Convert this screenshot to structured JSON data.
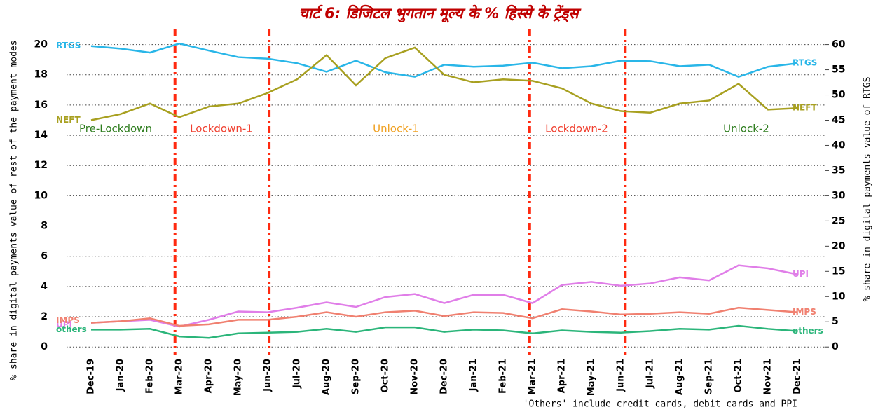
{
  "chart_data": {
    "type": "line",
    "title": "चार्ट 6: डिजिटल भुगतान मूल्य के % हिस्से के ट्रेंड्स",
    "y_label": "% share in digital payments value of rest of the payment modes",
    "y2_label": "% share in digital payments value of RTGS",
    "footnote": "'Others' include credit cards, debit cards and PPI",
    "categories": [
      "Dec-19",
      "Jan-20",
      "Feb-20",
      "Mar-20",
      "Apr-20",
      "May-20",
      "Jun-20",
      "Jul-20",
      "Aug-20",
      "Sep-20",
      "Oct-20",
      "Nov-20",
      "Dec-20",
      "Jan-21",
      "Feb-21",
      "Mar-21",
      "Apr-21",
      "May-21",
      "Jun-21",
      "Jul-21",
      "Aug-21",
      "Sep-21",
      "Oct-21",
      "Nov-21",
      "Dec-21"
    ],
    "annotations": [
      {
        "text": "Pre-Lockdown",
        "color": "#2e7d1e"
      },
      {
        "text": "Lockdown-1",
        "color": "#f04030"
      },
      {
        "text": "Unlock-1",
        "color": "#f0a020"
      },
      {
        "text": "Lockdown-2",
        "color": "#f04030"
      },
      {
        "text": "Unlock-2",
        "color": "#2e7d1e"
      }
    ],
    "series": [
      {
        "name": "RTGS",
        "color": "#29b6e8",
        "axis": "y2",
        "values": [
          59.7,
          59.2,
          58.4,
          60.2,
          58.8,
          57.5,
          57.2,
          56.3,
          54.6,
          56.8,
          54.5,
          53.6,
          56.0,
          55.6,
          55.8,
          56.4,
          55.3,
          55.7,
          56.8,
          56.7,
          55.7,
          56.0,
          53.6,
          55.6,
          56.3
        ]
      },
      {
        "name": "NEFT",
        "color": "#a8a020",
        "values": [
          15.0,
          15.4,
          16.1,
          15.2,
          15.9,
          16.1,
          16.8,
          17.7,
          19.3,
          17.3,
          19.1,
          19.8,
          18.0,
          17.5,
          17.7,
          17.6,
          17.1,
          16.1,
          15.6,
          15.5,
          16.1,
          16.3,
          17.4,
          15.7,
          15.8
        ]
      },
      {
        "name": "UPI",
        "color": "#e07ee8",
        "values": [
          1.6,
          1.7,
          1.8,
          1.35,
          1.8,
          2.35,
          2.3,
          2.6,
          2.95,
          2.65,
          3.3,
          3.5,
          2.9,
          3.45,
          3.45,
          2.9,
          4.1,
          4.3,
          4.05,
          4.2,
          4.6,
          4.4,
          5.4,
          5.2,
          4.8
        ]
      },
      {
        "name": "IMPS",
        "color": "#f08070",
        "values": [
          1.6,
          1.7,
          1.9,
          1.4,
          1.5,
          1.8,
          1.8,
          2.0,
          2.3,
          2.0,
          2.3,
          2.4,
          2.05,
          2.3,
          2.25,
          1.9,
          2.5,
          2.35,
          2.15,
          2.2,
          2.3,
          2.2,
          2.6,
          2.45,
          2.3
        ]
      },
      {
        "name": "others",
        "color": "#2bb57a",
        "values": [
          1.15,
          1.15,
          1.2,
          0.7,
          0.6,
          0.9,
          0.95,
          1.0,
          1.2,
          1.0,
          1.3,
          1.3,
          1.0,
          1.15,
          1.1,
          0.9,
          1.1,
          1.0,
          0.95,
          1.05,
          1.2,
          1.15,
          1.4,
          1.2,
          1.05
        ]
      }
    ],
    "ylim": [
      -0.5,
      21
    ],
    "yticks": [
      0,
      2,
      4,
      6,
      8,
      10,
      12,
      14,
      16,
      18,
      20
    ],
    "y2lim": [
      -1.5,
      63
    ],
    "y2ticks": [
      0,
      5,
      10,
      15,
      20,
      25,
      30,
      35,
      40,
      45,
      50,
      55,
      60
    ],
    "grid": true
  }
}
